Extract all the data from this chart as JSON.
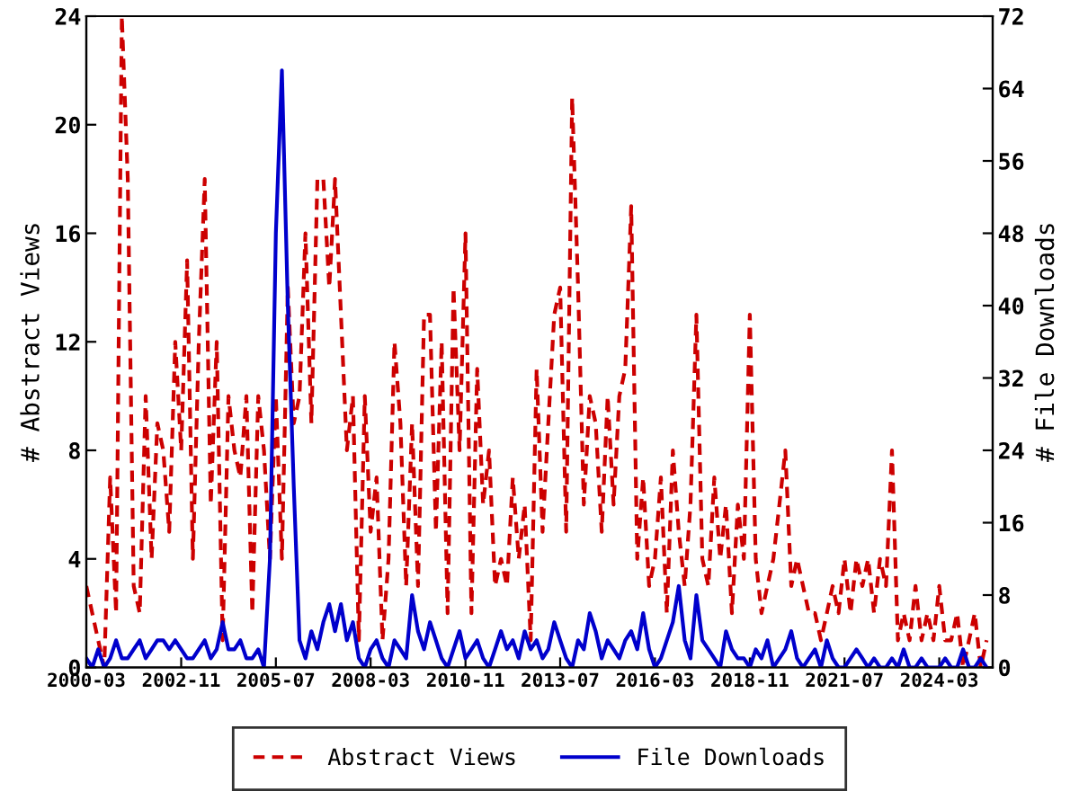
{
  "chart_data": {
    "type": "line",
    "ylabel": "# Abstract Views",
    "y2label": "# File Downloads",
    "x": [
      "2000-03",
      "2000-05",
      "2000-07",
      "2000-09",
      "2000-11",
      "2001-01",
      "2001-03",
      "2001-05",
      "2001-07",
      "2001-09",
      "2001-11",
      "2002-01",
      "2002-03",
      "2002-05",
      "2002-07",
      "2002-09",
      "2002-11",
      "2003-01",
      "2003-03",
      "2003-05",
      "2003-07",
      "2003-09",
      "2003-11",
      "2004-01",
      "2004-03",
      "2004-05",
      "2004-07",
      "2004-09",
      "2004-11",
      "2005-01",
      "2005-03",
      "2005-05",
      "2005-07",
      "2005-09",
      "2005-11",
      "2006-01",
      "2006-03",
      "2006-05",
      "2006-07",
      "2006-09",
      "2006-11",
      "2007-01",
      "2007-03",
      "2007-05",
      "2007-07",
      "2007-09",
      "2007-11",
      "2008-01",
      "2008-03",
      "2008-05",
      "2008-07",
      "2008-09",
      "2008-11",
      "2009-01",
      "2009-03",
      "2009-05",
      "2009-07",
      "2009-09",
      "2009-11",
      "2010-01",
      "2010-03",
      "2010-05",
      "2010-07",
      "2010-09",
      "2010-11",
      "2011-01",
      "2011-03",
      "2011-05",
      "2011-07",
      "2011-09",
      "2011-11",
      "2012-01",
      "2012-03",
      "2012-05",
      "2012-07",
      "2012-09",
      "2012-11",
      "2013-01",
      "2013-03",
      "2013-05",
      "2013-07",
      "2013-09",
      "2013-11",
      "2014-01",
      "2014-03",
      "2014-05",
      "2014-07",
      "2014-09",
      "2014-11",
      "2015-01",
      "2015-03",
      "2015-05",
      "2015-07",
      "2015-09",
      "2015-11",
      "2016-01",
      "2016-03",
      "2016-05",
      "2016-07",
      "2016-09",
      "2016-11",
      "2017-01",
      "2017-03",
      "2017-05",
      "2017-07",
      "2017-09",
      "2017-11",
      "2018-01",
      "2018-03",
      "2018-05",
      "2018-07",
      "2018-09",
      "2018-11",
      "2019-01",
      "2019-03",
      "2019-05",
      "2019-07",
      "2019-09",
      "2019-11",
      "2020-01",
      "2020-03",
      "2020-05",
      "2020-07",
      "2020-09",
      "2020-11",
      "2021-01",
      "2021-03",
      "2021-05",
      "2021-07",
      "2021-09",
      "2021-11",
      "2022-01",
      "2022-03",
      "2022-05",
      "2022-07",
      "2022-09",
      "2022-11",
      "2023-01",
      "2023-03",
      "2023-05",
      "2023-07",
      "2023-09",
      "2023-11",
      "2024-01",
      "2024-03",
      "2024-05",
      "2024-07",
      "2024-09",
      "2024-11",
      "2025-01",
      "2025-03",
      "2025-05",
      "2025-07"
    ],
    "series": [
      {
        "name": "Abstract Views",
        "color": "#cc0000",
        "line_style": "dashed",
        "values": [
          3,
          2,
          1,
          0,
          7,
          2,
          24,
          18,
          3,
          2,
          10,
          4,
          9,
          8,
          5,
          12,
          8,
          15,
          4,
          12,
          18,
          6,
          12,
          1,
          10,
          8,
          7,
          10,
          2,
          10,
          8,
          4,
          10,
          4,
          14,
          9,
          10,
          16,
          9,
          18,
          18,
          14,
          18,
          13,
          8,
          10,
          1,
          10,
          5,
          7,
          1,
          4,
          12,
          9,
          3,
          9,
          3,
          13,
          13,
          5,
          12,
          2,
          14,
          8,
          16,
          2,
          11,
          6,
          8,
          3,
          4,
          3,
          7,
          4,
          6,
          1,
          11,
          5,
          9,
          13,
          14,
          5,
          21,
          14,
          6,
          10,
          9,
          5,
          10,
          6,
          10,
          11,
          17,
          4,
          7,
          3,
          4,
          7,
          2,
          8,
          5,
          3,
          6,
          13,
          4,
          3,
          7,
          4,
          6,
          2,
          6,
          4,
          13,
          4,
          2,
          3,
          4,
          6,
          8,
          3,
          4,
          3,
          2,
          2,
          1,
          2,
          3,
          2,
          4,
          2,
          4,
          3,
          4,
          2,
          4,
          3,
          8,
          1,
          2,
          1,
          3,
          1,
          2,
          1,
          3,
          1,
          1,
          2,
          0,
          1,
          2,
          0,
          1
        ]
      },
      {
        "name": "File Downloads",
        "color": "#0000cc",
        "line_style": "solid",
        "axis": "y2",
        "values": [
          1,
          0,
          2,
          0,
          1,
          3,
          1,
          1,
          2,
          3,
          1,
          2,
          3,
          3,
          2,
          3,
          2,
          1,
          1,
          2,
          3,
          1,
          2,
          5,
          2,
          2,
          3,
          1,
          1,
          2,
          0,
          12,
          48,
          66,
          40,
          20,
          3,
          1,
          4,
          2,
          5,
          7,
          4,
          7,
          3,
          5,
          1,
          0,
          2,
          3,
          1,
          0,
          3,
          2,
          1,
          8,
          4,
          2,
          5,
          3,
          1,
          0,
          2,
          4,
          1,
          2,
          3,
          1,
          0,
          2,
          4,
          2,
          3,
          1,
          4,
          2,
          3,
          1,
          2,
          5,
          3,
          1,
          0,
          3,
          2,
          6,
          4,
          1,
          3,
          2,
          1,
          3,
          4,
          2,
          6,
          2,
          0,
          1,
          3,
          5,
          9,
          3,
          1,
          8,
          3,
          2,
          1,
          0,
          4,
          2,
          1,
          1,
          0,
          2,
          1,
          3,
          0,
          1,
          2,
          4,
          1,
          0,
          1,
          2,
          0,
          3,
          1,
          0,
          0,
          1,
          2,
          1,
          0,
          1,
          0,
          0,
          1,
          0,
          2,
          0,
          0,
          1,
          0,
          0,
          0,
          1,
          0,
          0,
          2,
          0,
          0,
          1,
          0
        ]
      }
    ],
    "xlim": [
      "2000-03",
      "2025-09"
    ],
    "xticks": [
      "2000-03",
      "2002-11",
      "2005-07",
      "2008-03",
      "2010-11",
      "2013-07",
      "2016-03",
      "2018-11",
      "2021-07",
      "2024-03"
    ],
    "ylim": [
      0,
      24
    ],
    "yticks": [
      0,
      4,
      8,
      12,
      16,
      20,
      24
    ],
    "y2lim": [
      0,
      72
    ],
    "y2ticks": [
      0,
      8,
      16,
      24,
      32,
      40,
      48,
      56,
      64,
      72
    ],
    "grid": false,
    "legend": "bottom",
    "marker": "none"
  }
}
